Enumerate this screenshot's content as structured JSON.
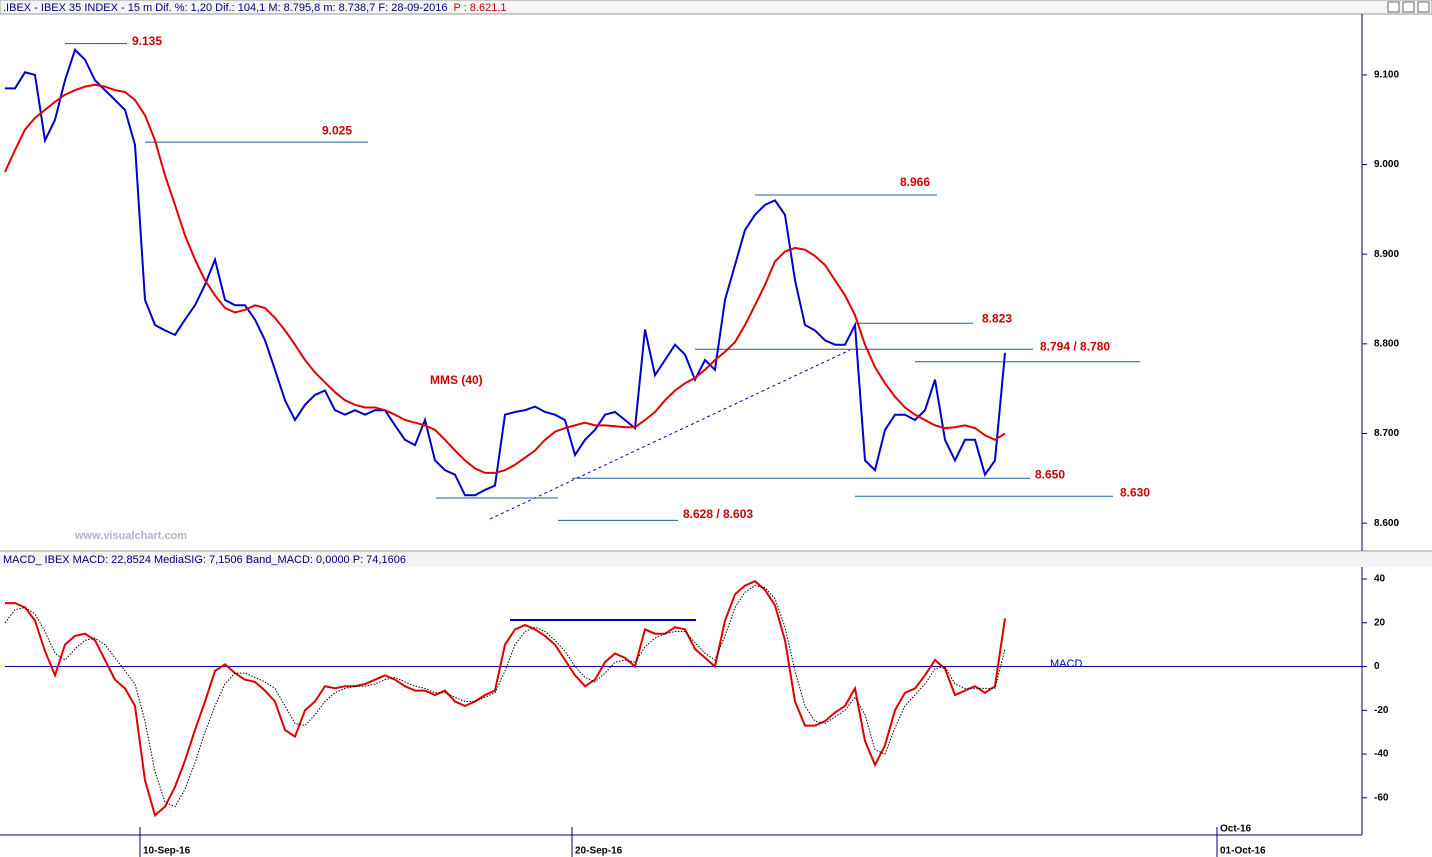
{
  "chart_data": [
    {
      "type": "line",
      "title": ".IBEX - IBEX 35 INDEX - 15 m  Dif. %: 1,20  Dif.: 104,1  M: 8.795,8  m: 8.738,7  F: 28-09-2016",
      "title_price": "P : 8.621,1",
      "watermark": "www.visualchart.com",
      "ylim": [
        8570,
        9168
      ],
      "yticks": [
        {
          "value": 8600,
          "label": "8.600"
        },
        {
          "value": 8700,
          "label": "8.700"
        },
        {
          "value": 8800,
          "label": "8.800"
        },
        {
          "value": 8900,
          "label": "8.900"
        },
        {
          "value": 9000,
          "label": "9.000"
        },
        {
          "value": 9100,
          "label": "9.100"
        }
      ],
      "xlim": [
        -0.5,
        135.7
      ],
      "series": [
        {
          "color": "#0000cc",
          "style": "solid",
          "values": [
            9085,
            9085,
            9103,
            9100,
            9027,
            9050,
            9094,
            9128,
            9117,
            9094,
            9083,
            9072,
            9061,
            9022,
            8849,
            8821,
            8815,
            8810,
            8827,
            8843,
            8866,
            8894,
            8849,
            8843,
            8843,
            8827,
            8804,
            8771,
            8737,
            8715,
            8732,
            8743,
            8748,
            8726,
            8721,
            8726,
            8721,
            8726,
            8726,
            8709,
            8693,
            8687,
            8715,
            8670,
            8659,
            8654,
            8631,
            8631,
            8637,
            8642,
            8721,
            8724,
            8726,
            8730,
            8724,
            8721,
            8715,
            8676,
            8693,
            8704,
            8721,
            8724,
            8715,
            8706,
            8816,
            8765,
            8782,
            8799,
            8788,
            8760,
            8782,
            8771,
            8849,
            8888,
            8927,
            8944,
            8955,
            8960,
            8944,
            8871,
            8821,
            8815,
            8804,
            8799,
            8799,
            8821,
            8670,
            8659,
            8704,
            8721,
            8721,
            8715,
            8726,
            8760,
            8693,
            8670,
            8693,
            8693,
            8654,
            8670,
            8790
          ]
        },
        {
          "name": "MMS (40)",
          "color": "#e00000",
          "style": "solid",
          "values": [
            8992,
            9016,
            9039,
            9052,
            9061,
            9070,
            9078,
            9083,
            9087,
            9089,
            9087,
            9083,
            9081,
            9072,
            9055,
            9027,
            8988,
            8955,
            8921,
            8894,
            8871,
            8854,
            8840,
            8835,
            8838,
            8843,
            8840,
            8829,
            8815,
            8799,
            8782,
            8768,
            8757,
            8746,
            8737,
            8732,
            8729,
            8729,
            8726,
            8721,
            8715,
            8712,
            8709,
            8704,
            8693,
            8681,
            8670,
            8661,
            8656,
            8656,
            8659,
            8665,
            8673,
            8681,
            8693,
            8702,
            8706,
            8709,
            8712,
            8709,
            8709,
            8708,
            8707,
            8707,
            8715,
            8724,
            8737,
            8748,
            8756,
            8762,
            8771,
            8782,
            8791,
            8802,
            8821,
            8843,
            8866,
            8892,
            8903,
            8907,
            8905,
            8898,
            8888,
            8871,
            8854,
            8832,
            8799,
            8774,
            8756,
            8741,
            8729,
            8721,
            8715,
            8709,
            8706,
            8707,
            8709,
            8706,
            8698,
            8693,
            8700
          ]
        }
      ],
      "levels": [
        {
          "label": "9.135",
          "values": [
            9135
          ]
        },
        {
          "label": "9.025",
          "values": [
            9025
          ]
        },
        {
          "label": "8.966",
          "values": [
            8966
          ]
        },
        {
          "label": "8.823",
          "values": [
            8823
          ]
        },
        {
          "label": "8.794 / 8.780",
          "values": [
            8794,
            8780
          ]
        },
        {
          "label": "8.650",
          "values": [
            8650
          ]
        },
        {
          "label": "8.630",
          "values": [
            8630
          ]
        },
        {
          "label": "8.628 / 8.603",
          "values": [
            8628,
            8603
          ]
        }
      ]
    },
    {
      "type": "line",
      "title": "MACD_ IBEX MACD: 22,8524  MediaSIG: 7,1506  Band_MACD: 0,0000  P: 74,1606",
      "ylim": [
        -77,
        45.5
      ],
      "yticks": [
        -60,
        -40,
        -20,
        0,
        20,
        40
      ],
      "xlim": [
        -0.5,
        135.7
      ],
      "xticks": [
        {
          "value": 13.5,
          "label": "10-Sep-16"
        },
        {
          "value": 56.7,
          "label": "20-Sep-16"
        },
        {
          "value": 121.2,
          "label": "01-Oct-16"
        }
      ],
      "x_month_ticks": [
        {
          "value": 121.2,
          "label": "Oct-16"
        }
      ],
      "series": [
        {
          "name": "MACD",
          "color": "#dd0000",
          "style": "solid",
          "values": [
            29,
            29,
            27,
            21,
            7,
            -4,
            10,
            14,
            15,
            12,
            3,
            -6,
            -10,
            -18,
            -52,
            -68,
            -64,
            -55,
            -43,
            -29,
            -16,
            -2,
            1,
            -3,
            -6,
            -7,
            -11,
            -16,
            -29,
            -32,
            -20,
            -16,
            -9,
            -10,
            -9,
            -9,
            -8,
            -6,
            -4,
            -6,
            -9,
            -11,
            -11,
            -13,
            -11,
            -16,
            -18,
            -16,
            -13,
            -11,
            10,
            17,
            19,
            17,
            14,
            10,
            3,
            -4,
            -9,
            -6,
            2,
            6,
            4,
            0,
            17,
            15,
            15,
            18,
            17,
            8,
            4,
            0,
            21,
            33,
            37,
            39,
            35,
            28,
            12,
            -16,
            -27,
            -27,
            -25,
            -21,
            -18,
            -10,
            -34,
            -45,
            -36,
            -20,
            -12,
            -10,
            -4,
            3,
            -1,
            -13,
            -11,
            -9,
            -12,
            -9,
            22
          ]
        },
        {
          "color": "#000000",
          "style": "dotted",
          "values": [
            20,
            26,
            27,
            24,
            16,
            6,
            3,
            8,
            12,
            13,
            10,
            4,
            -2,
            -8,
            -25,
            -48,
            -62,
            -64,
            -56,
            -44,
            -30,
            -18,
            -8,
            -3,
            -3,
            -5,
            -7,
            -10,
            -18,
            -26,
            -27,
            -22,
            -16,
            -12,
            -10,
            -9,
            -9,
            -8,
            -6,
            -5,
            -7,
            -9,
            -10,
            -12,
            -12,
            -14,
            -16,
            -16,
            -14,
            -12,
            -2,
            10,
            16,
            18,
            16,
            12,
            7,
            0,
            -5,
            -7,
            -3,
            2,
            3,
            2,
            9,
            13,
            15,
            16,
            16,
            11,
            6,
            3,
            14,
            27,
            34,
            37,
            36,
            31,
            18,
            -2,
            -18,
            -25,
            -26,
            -23,
            -20,
            -14,
            -22,
            -38,
            -40,
            -28,
            -18,
            -13,
            -8,
            -1,
            0,
            -8,
            -10,
            -10,
            -10,
            -10,
            8
          ]
        }
      ]
    }
  ]
}
